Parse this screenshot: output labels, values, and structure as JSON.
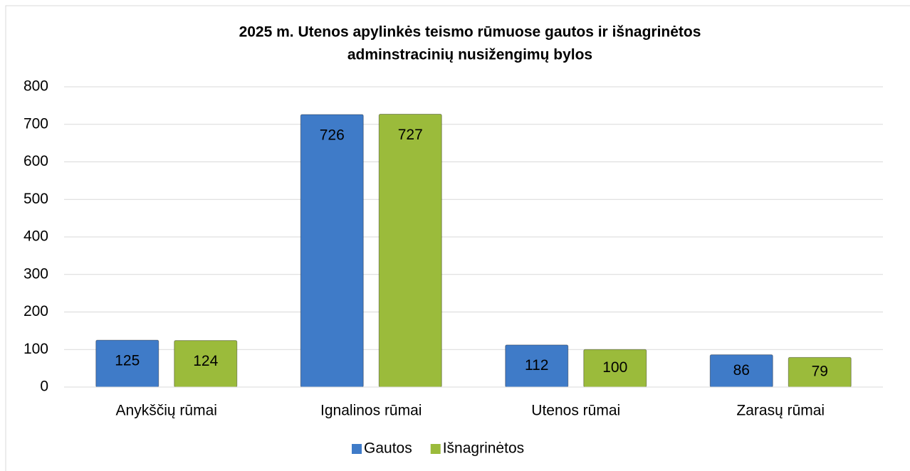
{
  "chart_data": {
    "type": "bar",
    "title": [
      "2025 m. Utenos apylinkės teismo rūmuose gautos ir išnagrinėtos",
      "adminstracinių nusižengimų bylos"
    ],
    "categories": [
      "Anykščių rūmai",
      "Ignalinos rūmai",
      "Utenos rūmai",
      "Zarasų rūmai"
    ],
    "series": [
      {
        "name": "Gautos",
        "color": "#3f7bc8",
        "values": [
          125,
          726,
          112,
          86
        ]
      },
      {
        "name": "Išnagrinėtos",
        "color": "#9bbb3b",
        "values": [
          124,
          727,
          100,
          79
        ]
      }
    ],
    "ylim": [
      0,
      800
    ],
    "yticks": [
      0,
      100,
      200,
      300,
      400,
      500,
      600,
      700,
      800
    ],
    "grid": true,
    "legend": "bottom"
  }
}
